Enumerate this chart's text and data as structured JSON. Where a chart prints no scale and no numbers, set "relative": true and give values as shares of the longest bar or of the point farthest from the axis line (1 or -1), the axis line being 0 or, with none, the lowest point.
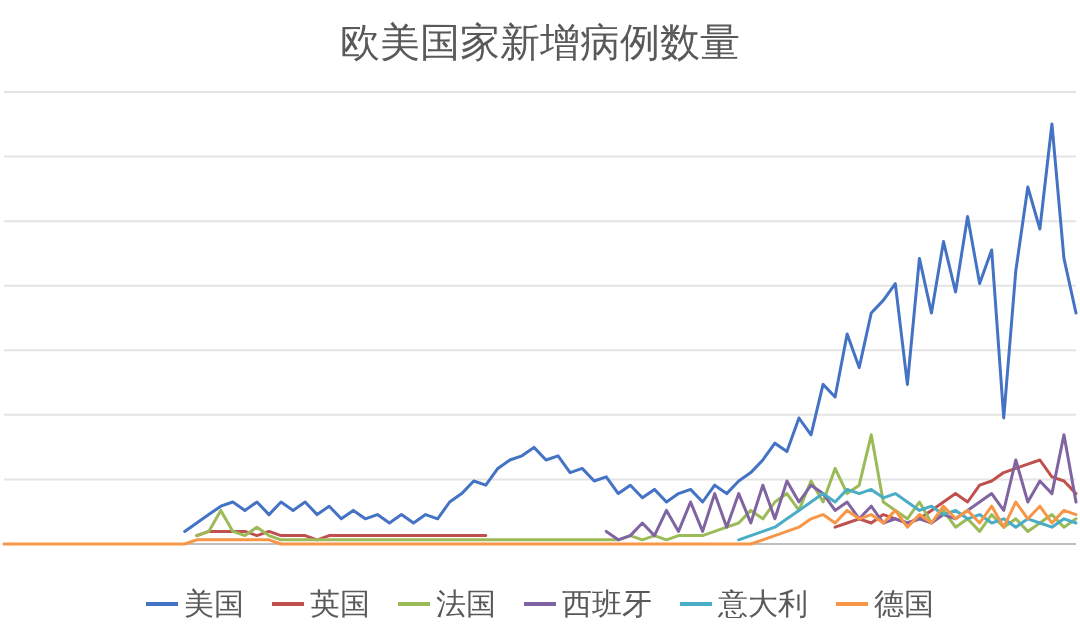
{
  "chart_data": {
    "type": "line",
    "title": "欧美国家新增病例数量",
    "relative": true,
    "grid": "y",
    "legend": "bottom",
    "marker": "none",
    "categories": [
      null,
      null,
      null,
      null,
      null,
      null,
      null,
      null,
      null,
      null,
      null,
      null,
      null,
      null,
      null,
      null,
      null,
      null,
      null,
      null,
      null,
      null,
      null,
      null,
      null,
      null,
      null,
      null,
      null,
      null,
      null,
      null,
      null,
      null,
      null,
      null,
      null,
      null,
      null,
      null,
      null,
      null,
      null,
      null,
      null,
      null,
      null,
      null,
      null,
      null,
      null,
      null,
      null,
      null,
      null,
      null,
      null,
      null,
      null,
      null,
      null,
      null,
      null,
      null,
      null,
      null,
      null,
      null,
      null,
      null,
      null,
      null,
      null,
      null,
      null,
      null,
      null,
      null,
      null,
      null,
      null,
      null,
      null,
      null,
      null,
      null,
      null,
      null,
      null,
      null
    ],
    "series": [
      {
        "name": "美国",
        "color": "#4472c4",
        "values": [
          null,
          null,
          null,
          null,
          null,
          null,
          null,
          null,
          null,
          null,
          null,
          null,
          null,
          null,
          null,
          0.03,
          0.05,
          0.07,
          0.09,
          0.1,
          0.08,
          0.1,
          0.07,
          0.1,
          0.08,
          0.1,
          0.07,
          0.09,
          0.06,
          0.08,
          0.06,
          0.07,
          0.05,
          0.07,
          0.05,
          0.07,
          0.06,
          0.1,
          0.12,
          0.15,
          0.14,
          0.18,
          0.2,
          0.21,
          0.23,
          0.2,
          0.21,
          0.17,
          0.18,
          0.15,
          0.16,
          0.12,
          0.14,
          0.11,
          0.13,
          0.1,
          0.12,
          0.13,
          0.1,
          0.14,
          0.12,
          0.15,
          0.17,
          0.2,
          0.24,
          0.22,
          0.3,
          0.26,
          0.38,
          0.35,
          0.5,
          0.42,
          0.55,
          0.58,
          0.62,
          0.38,
          0.68,
          0.55,
          0.72,
          0.6,
          0.78,
          0.62,
          0.7,
          0.3,
          0.65,
          0.85,
          0.75,
          1.0,
          0.68,
          0.55
        ]
      },
      {
        "name": "英国",
        "color": "#c0504d",
        "values": [
          null,
          null,
          null,
          null,
          null,
          null,
          null,
          null,
          null,
          null,
          null,
          null,
          null,
          null,
          null,
          null,
          0.02,
          0.03,
          0.03,
          0.03,
          0.03,
          0.02,
          0.03,
          0.02,
          0.02,
          0.02,
          0.01,
          0.02,
          0.02,
          0.02,
          0.02,
          0.02,
          0.02,
          0.02,
          0.02,
          0.02,
          0.02,
          0.02,
          0.02,
          0.02,
          0.02,
          null,
          null,
          null,
          null,
          null,
          null,
          null,
          null,
          null,
          null,
          null,
          null,
          null,
          null,
          null,
          null,
          null,
          null,
          null,
          null,
          null,
          null,
          null,
          null,
          null,
          null,
          null,
          null,
          0.04,
          0.05,
          0.06,
          0.05,
          0.07,
          0.06,
          0.05,
          0.06,
          0.08,
          0.1,
          0.12,
          0.1,
          0.14,
          0.15,
          0.17,
          0.18,
          0.19,
          0.2,
          0.16,
          0.15,
          0.12
        ]
      },
      {
        "name": "法国",
        "color": "#9bbb59",
        "values": [
          null,
          null,
          null,
          null,
          null,
          null,
          null,
          null,
          null,
          null,
          null,
          null,
          null,
          null,
          null,
          null,
          0.02,
          0.03,
          0.08,
          0.03,
          0.02,
          0.04,
          0.02,
          0.01,
          0.01,
          0.01,
          0.01,
          0.01,
          0.01,
          0.01,
          0.01,
          0.01,
          0.01,
          0.01,
          0.01,
          0.01,
          0.01,
          0.01,
          0.01,
          0.01,
          0.01,
          0.01,
          0.01,
          0.01,
          0.01,
          0.01,
          0.01,
          0.01,
          0.01,
          0.01,
          0.01,
          0.01,
          0.02,
          0.01,
          0.02,
          0.01,
          0.02,
          0.02,
          0.02,
          0.03,
          0.04,
          0.05,
          0.08,
          0.06,
          0.1,
          0.12,
          0.08,
          0.15,
          0.1,
          0.18,
          0.12,
          0.14,
          0.26,
          0.1,
          0.08,
          0.06,
          0.1,
          0.05,
          0.08,
          0.04,
          0.06,
          0.03,
          0.07,
          0.04,
          0.06,
          0.03,
          0.05,
          0.07,
          0.04,
          0.06
        ]
      },
      {
        "name": "西班牙",
        "color": "#8064a2",
        "values": [
          null,
          null,
          null,
          null,
          null,
          null,
          null,
          null,
          null,
          null,
          null,
          null,
          null,
          null,
          null,
          null,
          null,
          null,
          null,
          null,
          null,
          null,
          null,
          null,
          null,
          null,
          null,
          null,
          null,
          null,
          null,
          null,
          null,
          null,
          null,
          null,
          null,
          null,
          null,
          null,
          null,
          null,
          null,
          null,
          null,
          null,
          null,
          null,
          null,
          null,
          0.03,
          0.01,
          0.02,
          0.05,
          0.02,
          0.08,
          0.03,
          0.1,
          0.03,
          0.12,
          0.04,
          0.12,
          0.05,
          0.14,
          0.06,
          0.15,
          0.1,
          0.14,
          0.12,
          0.08,
          0.1,
          0.06,
          0.09,
          0.05,
          0.06,
          0.05,
          0.06,
          0.05,
          0.07,
          0.06,
          0.08,
          0.1,
          0.12,
          0.08,
          0.2,
          0.1,
          0.15,
          0.12,
          0.26,
          0.1
        ]
      },
      {
        "name": "意大利",
        "color": "#4bacc6",
        "values": [
          null,
          null,
          null,
          null,
          null,
          null,
          null,
          null,
          null,
          null,
          null,
          null,
          null,
          null,
          null,
          null,
          null,
          null,
          null,
          null,
          null,
          null,
          null,
          null,
          null,
          null,
          null,
          null,
          null,
          null,
          null,
          null,
          null,
          null,
          null,
          null,
          null,
          null,
          null,
          null,
          null,
          null,
          null,
          null,
          null,
          null,
          null,
          null,
          null,
          null,
          null,
          null,
          null,
          null,
          null,
          null,
          null,
          null,
          null,
          null,
          null,
          0.01,
          0.02,
          0.03,
          0.04,
          0.06,
          0.08,
          0.1,
          0.12,
          0.1,
          0.13,
          0.12,
          0.13,
          0.11,
          0.12,
          0.1,
          0.08,
          0.09,
          0.07,
          0.08,
          0.06,
          0.07,
          0.05,
          0.06,
          0.04,
          0.06,
          0.05,
          0.04,
          0.06,
          0.05
        ]
      },
      {
        "name": "德国",
        "color": "#f79646",
        "values": [
          0,
          0,
          0,
          0,
          0,
          0,
          0,
          0,
          0,
          0,
          0,
          0,
          0,
          0,
          0,
          0,
          0.01,
          0.01,
          0.01,
          0.01,
          0.01,
          0.01,
          0.01,
          0,
          0,
          0,
          0,
          0,
          0,
          0,
          0,
          0,
          0,
          0,
          0,
          0,
          0,
          0,
          0,
          0,
          0,
          0,
          0,
          0,
          0,
          0,
          0,
          0,
          0,
          0,
          0,
          0,
          0,
          0,
          0,
          0,
          0,
          0,
          0,
          0,
          0,
          0,
          0,
          0.01,
          0.02,
          0.03,
          0.04,
          0.06,
          0.07,
          0.05,
          0.08,
          0.06,
          0.07,
          0.05,
          0.08,
          0.04,
          0.07,
          0.05,
          0.09,
          0.06,
          0.08,
          0.05,
          0.09,
          0.04,
          0.1,
          0.06,
          0.09,
          0.05,
          0.08,
          0.07
        ]
      }
    ]
  }
}
